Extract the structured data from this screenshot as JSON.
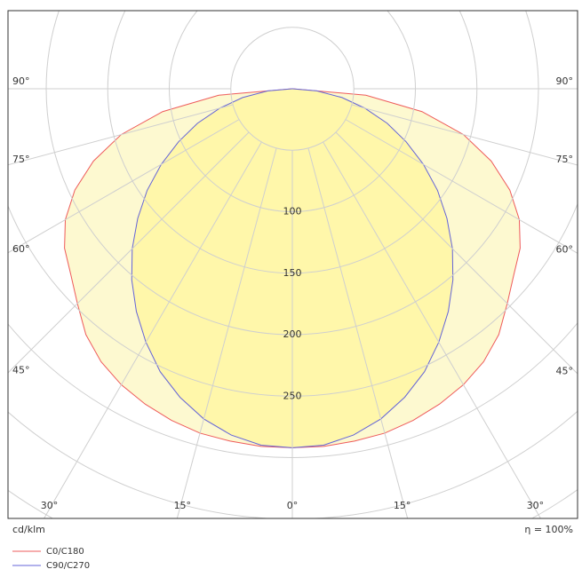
{
  "chart_data": {
    "type": "polar",
    "unit": "cd/klm",
    "efficiency": "η = 100%",
    "angles": [
      0,
      5,
      10,
      15,
      20,
      25,
      30,
      35,
      40,
      45,
      50,
      55,
      60,
      65,
      70,
      75,
      80,
      85,
      90
    ],
    "series": [
      {
        "name": "C0/C180",
        "color": "#ee5b5b",
        "fill": "#fdf7c4",
        "values": [
          292,
          292,
          291,
          290,
          287,
          283,
          278,
          271,
          261,
          247,
          235,
          226,
          213,
          195,
          172,
          144,
          107,
          60,
          0
        ]
      },
      {
        "name": "C90/C270",
        "color": "#6464d8",
        "fill": "#fff6a0",
        "values": [
          292,
          291,
          286,
          278,
          267,
          254,
          238,
          221,
          203,
          184,
          164,
          144,
          123,
          102,
          82,
          61,
          41,
          20,
          0
        ]
      }
    ],
    "rlim": [
      0,
      400
    ],
    "rticks": [
      100,
      150,
      200,
      250
    ],
    "rgrid": [
      50,
      100,
      150,
      200,
      250,
      300,
      350,
      400
    ],
    "angle_ticks": [
      {
        "value": 0,
        "label": "0°"
      },
      {
        "value": 15,
        "label": "15°"
      },
      {
        "value": 30,
        "label": "30°"
      },
      {
        "value": 45,
        "label": "45°"
      },
      {
        "value": 60,
        "label": "60°"
      },
      {
        "value": 75,
        "label": "75°"
      },
      {
        "value": 90,
        "label": "90°"
      }
    ]
  }
}
